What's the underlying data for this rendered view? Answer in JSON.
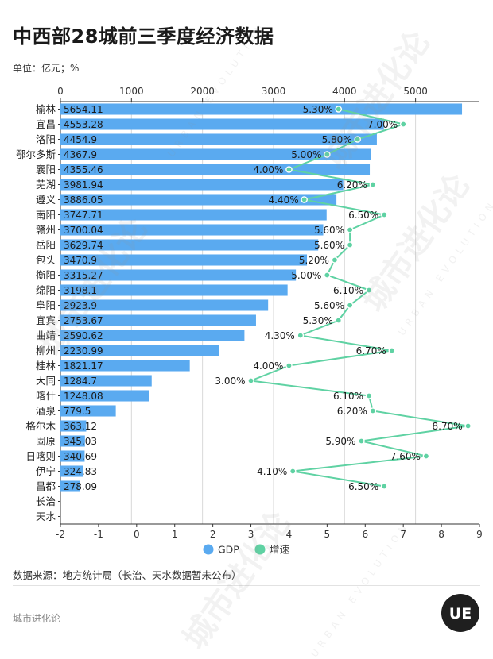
{
  "header": {
    "title": "中西部28城前三季度经济数据",
    "unit": "单位：亿元；%"
  },
  "footer": {
    "source": "数据来源：地方统计局（长治、天水数据暂未公布）",
    "brand": "城市进化论",
    "watermark_text": "城市进化论",
    "watermark_sub": "URBAN EVOLUTION",
    "logo_text": "UE"
  },
  "colors": {
    "bar": "#5aaaf0",
    "line": "#5fd2a3",
    "marker_fill": "#5fd2a3",
    "grid": "#d8d8d8",
    "axis": "#333333"
  },
  "chart_data": {
    "type": "bar",
    "title": "中西部28城前三季度经济数据",
    "orientation": "horizontal",
    "categories": [
      "榆林",
      "宜昌",
      "洛阳",
      "鄂尔多斯",
      "襄阳",
      "芜湖",
      "遵义",
      "南阳",
      "赣州",
      "岳阳",
      "包头",
      "衡阳",
      "绵阳",
      "阜阳",
      "宜宾",
      "曲靖",
      "柳州",
      "桂林",
      "大同",
      "喀什",
      "酒泉",
      "格尔木",
      "固原",
      "日喀则",
      "伊宁",
      "昌都",
      "长治",
      "天水"
    ],
    "series": [
      {
        "name": "GDP",
        "type": "bar",
        "axis": "top",
        "values": [
          5654.11,
          4553.28,
          4454.9,
          4367.9,
          4355.46,
          3981.94,
          3886.05,
          3747.71,
          3700.04,
          3629.74,
          3470.9,
          3315.27,
          3198.1,
          2923.9,
          2753.67,
          2590.62,
          2230.99,
          1821.17,
          1284.7,
          1248.08,
          779.5,
          363.12,
          345.03,
          340.69,
          324.83,
          278.09,
          null,
          null
        ],
        "labels": [
          "5654.11",
          "4553.28",
          "4454.9",
          "4367.9",
          "4355.46",
          "3981.94",
          "3886.05",
          "3747.71",
          "3700.04",
          "3629.74",
          "3470.9",
          "3315.27",
          "3198.1",
          "2923.9",
          "2753.67",
          "2590.62",
          "2230.99",
          "1821.17",
          "1284.7",
          "1248.08",
          "779.5",
          "363.12",
          "345.03",
          "340.69",
          "324.83",
          "278.09",
          "",
          ""
        ]
      },
      {
        "name": "增速",
        "type": "line",
        "axis": "bottom",
        "values": [
          5.3,
          7.0,
          5.8,
          5.0,
          4.0,
          6.2,
          4.4,
          6.5,
          5.6,
          5.6,
          5.2,
          5.0,
          6.1,
          5.6,
          5.3,
          4.3,
          6.7,
          4.0,
          3.0,
          6.1,
          6.2,
          8.7,
          5.9,
          7.6,
          4.1,
          6.5,
          null,
          null
        ],
        "labels": [
          "5.30%",
          "7.00%",
          "5.80%",
          "5.00%",
          "4.00%",
          "6.20%",
          "4.40%",
          "6.50%",
          "5.60%",
          "5.60%",
          "5.20%",
          "5.00%",
          "6.10%",
          "5.60%",
          "5.30%",
          "4.30%",
          "6.70%",
          "4.00%",
          "3.00%",
          "6.10%",
          "6.20%",
          "8.70%",
          "5.90%",
          "7.60%",
          "4.10%",
          "6.50%",
          "",
          ""
        ]
      }
    ],
    "top_axis": {
      "range": [
        0,
        5900
      ],
      "ticks": [
        0,
        1000,
        2000,
        3000,
        4000,
        5000
      ]
    },
    "bottom_axis": {
      "range": [
        -2,
        9
      ],
      "ticks": [
        -2,
        -1,
        0,
        1,
        2,
        3,
        4,
        5,
        6,
        7,
        8,
        9
      ]
    },
    "legend": {
      "position": "bottom",
      "items": [
        "GDP",
        "增速"
      ]
    },
    "grid": true
  }
}
